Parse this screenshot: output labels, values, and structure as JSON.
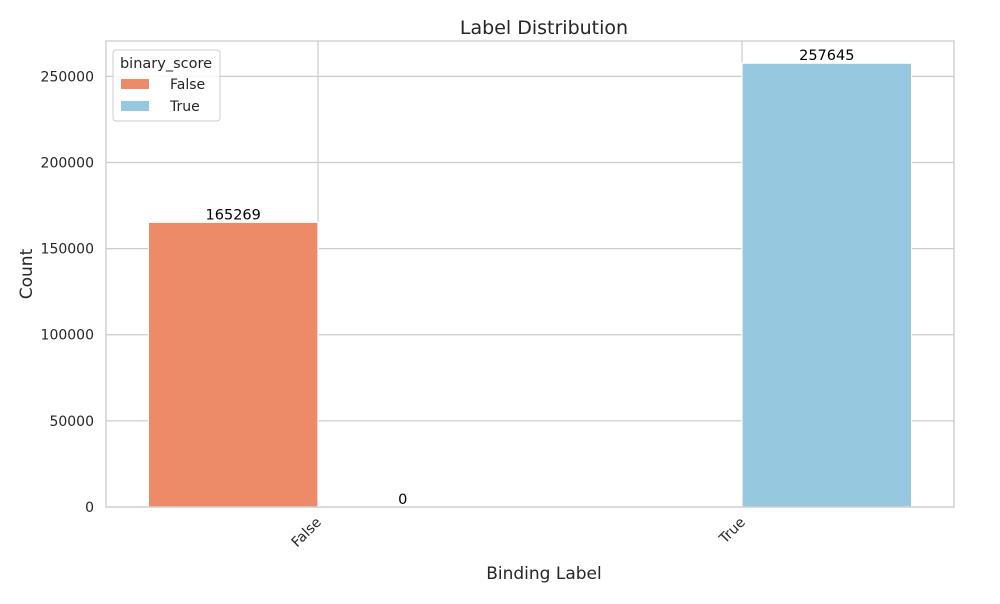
{
  "chart_data": {
    "type": "bar",
    "title": "Label Distribution",
    "xlabel": "Binding Label",
    "ylabel": "Count",
    "categories": [
      "False",
      "True"
    ],
    "ylim": [
      0,
      270532
    ],
    "yticks": [
      0,
      50000,
      100000,
      150000,
      200000,
      250000
    ],
    "grid": true,
    "legend": {
      "title": "binary_score",
      "placement": "top-left",
      "entries": [
        "False",
        "True"
      ]
    },
    "series": [
      {
        "name": "False",
        "color": "#ED8A67",
        "values": [
          165269,
          0
        ]
      },
      {
        "name": "True",
        "color": "#96C9DF",
        "values": [
          0,
          257645
        ]
      }
    ],
    "bar_labels": [
      {
        "category": "False",
        "series": "False",
        "text": "165269"
      },
      {
        "category": "False",
        "series": "True",
        "text": "0"
      },
      {
        "category": "True",
        "series": "True",
        "text": "257645"
      }
    ]
  }
}
